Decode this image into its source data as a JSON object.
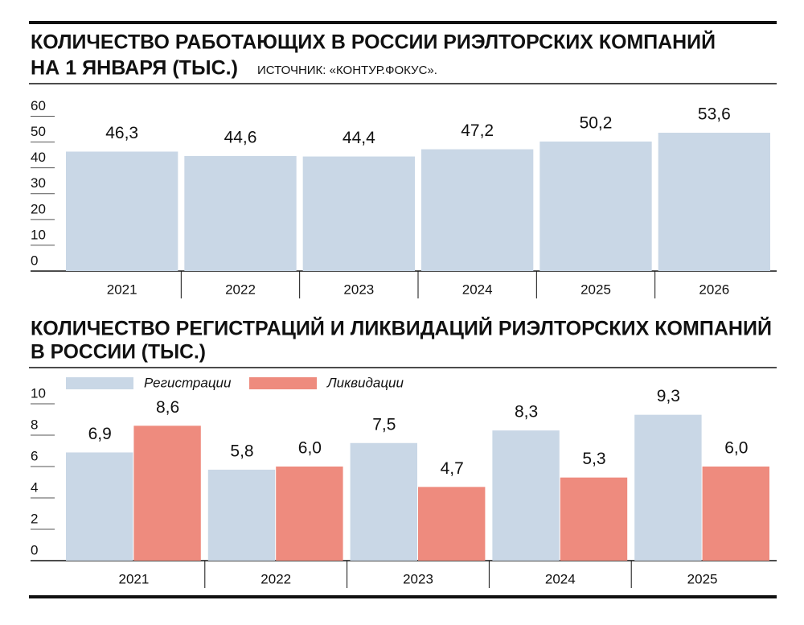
{
  "chart_data": [
    {
      "type": "bar",
      "title": [
        "КОЛИЧЕСТВО РАБОТАЮЩИХ В РОССИИ РИЭЛТОРСКИХ КОМПАНИЙ",
        "НА 1 ЯНВАРЯ (ТЫС.)"
      ],
      "source": "ИСТОЧНИК: «КОНТУР.ФОКУС».",
      "categories": [
        "2021",
        "2022",
        "2023",
        "2024",
        "2025",
        "2026"
      ],
      "values": [
        46.3,
        44.6,
        44.4,
        47.2,
        50.2,
        53.6
      ],
      "value_labels": [
        "46,3",
        "44,6",
        "44,4",
        "47,2",
        "50,2",
        "53,6"
      ],
      "color": "#c9d7e6",
      "ylim": [
        0,
        60
      ],
      "yticks": [
        0,
        10,
        20,
        30,
        40,
        50,
        60
      ]
    },
    {
      "type": "grouped_bar",
      "title": [
        "КОЛИЧЕСТВО РЕГИСТРАЦИЙ И ЛИКВИДАЦИЙ РИЭЛТОРСКИХ КОМПАНИЙ",
        "В РОССИИ (ТЫС.)"
      ],
      "categories": [
        "2021",
        "2022",
        "2023",
        "2024",
        "2025"
      ],
      "series": [
        {
          "name": "Регистрации",
          "color": "#c9d7e6",
          "values": [
            6.9,
            5.8,
            7.5,
            8.3,
            9.3
          ],
          "value_labels": [
            "6,9",
            "5,8",
            "7,5",
            "8,3",
            "9,3"
          ]
        },
        {
          "name": "Ликвидации",
          "color": "#ee8b7e",
          "values": [
            8.6,
            6.0,
            4.7,
            5.3,
            6.0
          ],
          "value_labels": [
            "8,6",
            "6,0",
            "4,7",
            "5,3",
            "6,0"
          ]
        }
      ],
      "ylim": [
        0,
        10
      ],
      "yticks": [
        0,
        2,
        4,
        6,
        8,
        10
      ]
    }
  ]
}
